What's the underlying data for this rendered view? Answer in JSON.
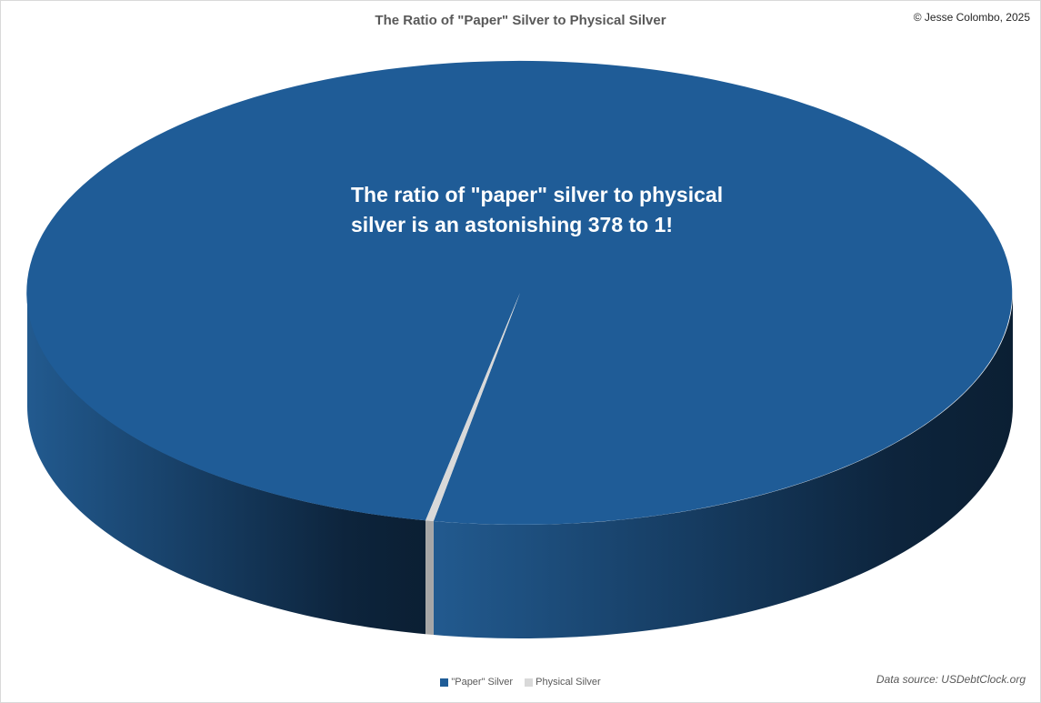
{
  "chart_data": {
    "type": "pie",
    "title": "The Ratio of \"Paper\" Silver to Physical Silver",
    "slices": [
      {
        "label": "\"Paper\" Silver",
        "value": 378,
        "color": "#1f5c97"
      },
      {
        "label": "Physical Silver",
        "value": 1,
        "color": "#d9d9d9"
      }
    ],
    "legend_position": "bottom",
    "annotation": "The ratio of \"paper\" silver to physical silver is an astonishing 378 to 1!",
    "style": "3d"
  },
  "copyright": "© Jesse Colombo, 2025",
  "source": "Data source: USDebtClock.org"
}
